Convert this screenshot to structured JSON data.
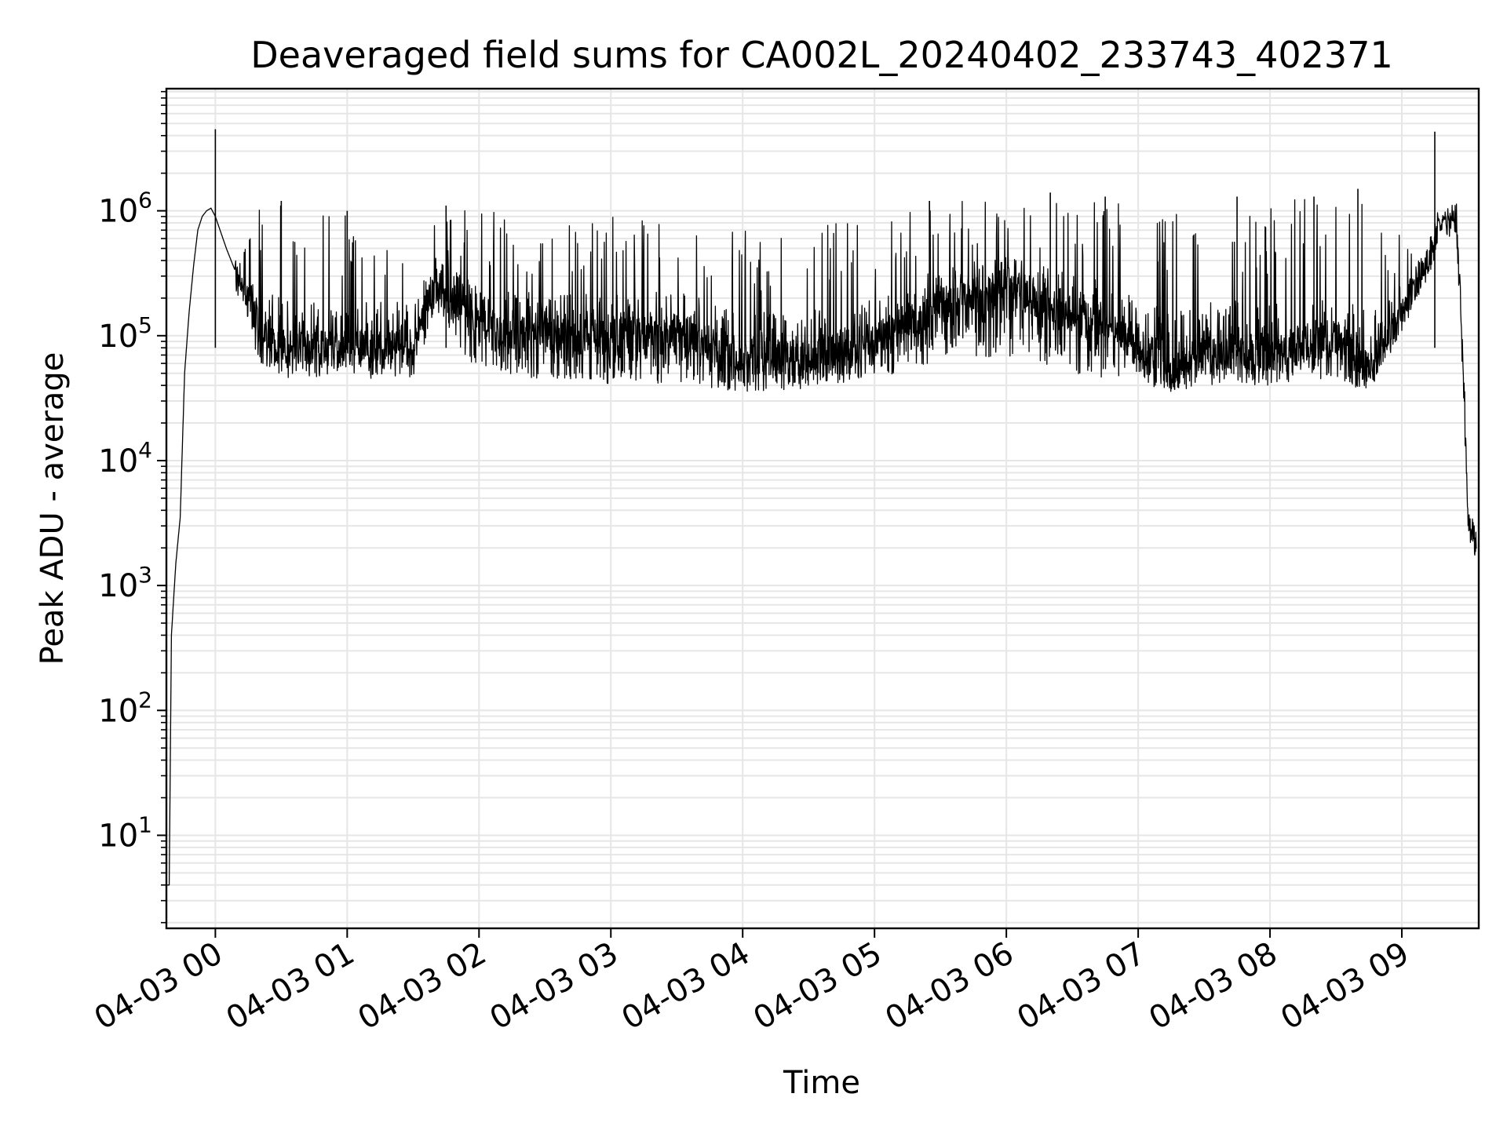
{
  "chart_data": {
    "type": "line",
    "title": "Deaveraged field sums for CA002L_20240402_233743_402371",
    "xlabel": "Time",
    "ylabel": "Peak ADU - average",
    "yscale": "log",
    "grid": true,
    "legend": "none",
    "line_color": "#000000",
    "grid_color": "#e6e6e6",
    "xlim": [
      "2024-04-02 23:37:43",
      "2024-04-03 09:35:00"
    ],
    "ylim": [
      1.8,
      9500000
    ],
    "xticks": [
      {
        "value": "2024-04-03 00:00",
        "label": "04-03 00"
      },
      {
        "value": "2024-04-03 01:00",
        "label": "04-03 01"
      },
      {
        "value": "2024-04-03 02:00",
        "label": "04-03 02"
      },
      {
        "value": "2024-04-03 03:00",
        "label": "04-03 03"
      },
      {
        "value": "2024-04-03 04:00",
        "label": "04-03 04"
      },
      {
        "value": "2024-04-03 05:00",
        "label": "04-03 05"
      },
      {
        "value": "2024-04-03 06:00",
        "label": "04-03 06"
      },
      {
        "value": "2024-04-03 07:00",
        "label": "04-03 07"
      },
      {
        "value": "2024-04-03 08:00",
        "label": "04-03 08"
      },
      {
        "value": "2024-04-03 09:00",
        "label": "04-03 09"
      }
    ],
    "yticks": [
      {
        "value": 10,
        "base": "10",
        "exp": "1"
      },
      {
        "value": 100,
        "base": "10",
        "exp": "2"
      },
      {
        "value": 1000,
        "base": "10",
        "exp": "3"
      },
      {
        "value": 10000,
        "base": "10",
        "exp": "4"
      },
      {
        "value": 100000,
        "base": "10",
        "exp": "5"
      },
      {
        "value": 1000000,
        "base": "10",
        "exp": "6"
      }
    ],
    "series": [
      {
        "envelope": {
          "x": [
            "2024-04-02 23:38",
            "2024-04-02 23:39",
            "2024-04-02 23:40",
            "2024-04-02 23:42",
            "2024-04-02 23:44",
            "2024-04-02 23:46",
            "2024-04-02 23:48",
            "2024-04-02 23:50",
            "2024-04-02 23:52",
            "2024-04-02 23:54",
            "2024-04-02 23:56",
            "2024-04-02 23:58",
            "2024-04-03 00:00",
            "2024-04-03 00:05",
            "2024-04-03 00:10",
            "2024-04-03 00:20",
            "2024-04-03 00:30",
            "2024-04-03 01:00",
            "2024-04-03 01:30",
            "2024-04-03 01:40",
            "2024-04-03 02:00",
            "2024-04-03 02:30",
            "2024-04-03 03:00",
            "2024-04-03 03:30",
            "2024-04-03 04:00",
            "2024-04-03 04:30",
            "2024-04-03 05:00",
            "2024-04-03 05:30",
            "2024-04-03 06:00",
            "2024-04-03 06:30",
            "2024-04-03 07:00",
            "2024-04-03 07:15",
            "2024-04-03 07:30",
            "2024-04-03 08:00",
            "2024-04-03 08:30",
            "2024-04-03 08:45",
            "2024-04-03 09:00",
            "2024-04-03 09:10",
            "2024-04-03 09:15",
            "2024-04-03 09:17",
            "2024-04-03 09:20",
            "2024-04-03 09:25",
            "2024-04-03 09:28",
            "2024-04-03 09:30",
            "2024-04-03 09:32",
            "2024-04-03 09:34"
          ],
          "base": [
            4,
            4,
            400,
            1500,
            3500,
            50000,
            150000,
            350000,
            700000,
            900000,
            1000000,
            1050000,
            900000,
            500000,
            300000,
            120000,
            80000,
            80000,
            80000,
            250000,
            120000,
            100000,
            100000,
            110000,
            70000,
            65000,
            90000,
            180000,
            250000,
            150000,
            90000,
            50000,
            80000,
            70000,
            100000,
            50000,
            150000,
            350000,
            550000,
            800000,
            900000,
            800000,
            50000,
            4000,
            2500,
            2000
          ],
          "low": [
            4,
            4,
            400,
            1500,
            3500,
            50000,
            150000,
            350000,
            700000,
            900000,
            1000000,
            1050000,
            900000,
            500000,
            300000,
            55000,
            45000,
            45000,
            45000,
            150000,
            50000,
            45000,
            40000,
            42000,
            35000,
            38000,
            45000,
            60000,
            70000,
            50000,
            42000,
            35000,
            40000,
            40000,
            45000,
            35000,
            100000,
            280000,
            450000,
            750000,
            850000,
            700000,
            45000,
            3000,
            2000,
            1600
          ],
          "high": [
            4,
            4,
            400,
            1500,
            3500,
            50000,
            150000,
            350000,
            700000,
            900000,
            1000000,
            1050000,
            900000,
            500000,
            350000,
            1100000,
            1100000,
            1000000,
            900000,
            1100000,
            1000000,
            900000,
            900000,
            900000,
            700000,
            800000,
            1000000,
            1200000,
            1200000,
            1300000,
            1200000,
            1100000,
            1200000,
            1300000,
            1300000,
            1300000,
            700000,
            700000,
            700000,
            900000,
            950000,
            900000,
            100000,
            5000,
            3500,
            3000
          ]
        },
        "spikes": [
          {
            "x": "2024-04-03 00:00",
            "y": 4500000
          },
          {
            "x": "2024-04-03 00:30",
            "y": 1200000
          },
          {
            "x": "2024-04-03 01:00",
            "y": 1000000
          },
          {
            "x": "2024-04-03 01:45",
            "y": 1100000
          },
          {
            "x": "2024-04-03 05:25",
            "y": 1200000
          },
          {
            "x": "2024-04-03 06:20",
            "y": 1400000
          },
          {
            "x": "2024-04-03 06:45",
            "y": 1300000
          },
          {
            "x": "2024-04-03 07:45",
            "y": 1300000
          },
          {
            "x": "2024-04-03 08:20",
            "y": 1300000
          },
          {
            "x": "2024-04-03 08:40",
            "y": 1500000
          },
          {
            "x": "2024-04-03 09:15",
            "y": 4300000
          }
        ]
      }
    ]
  }
}
